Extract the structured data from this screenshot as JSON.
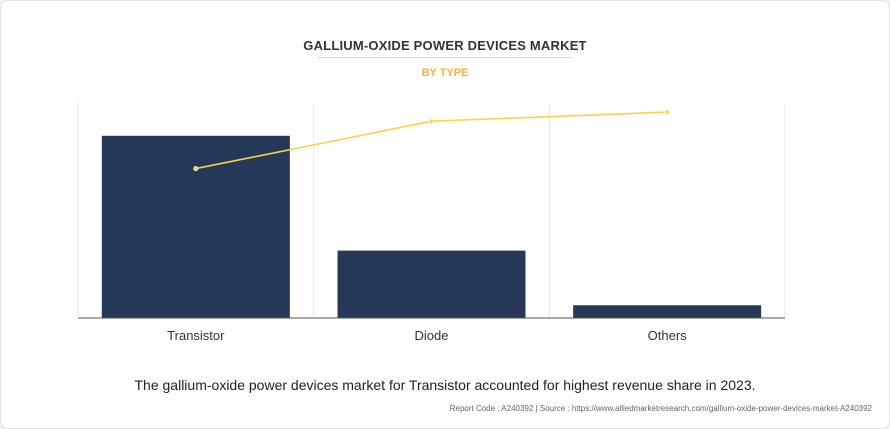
{
  "chart_data": {
    "type": "bar",
    "title": "GALLIUM-OXIDE POWER DEVICES MARKET",
    "subtitle": "BY TYPE",
    "categories": [
      "Transistor",
      "Diode",
      "Others"
    ],
    "values": [
      100,
      37,
      7
    ],
    "line_values": [
      82,
      108,
      113
    ],
    "ylim": [
      0,
      118
    ],
    "grid": "vertical",
    "legend": "none",
    "colors": {
      "bar": "#253858",
      "line": "#f6d44b",
      "axis": "#555555",
      "grid": "#e6e6e6"
    }
  },
  "caption": "The gallium-oxide power devices market for Transistor accounted for highest revenue share in 2023.",
  "source": "Report Code : A240392  |  Source : https://www.alliedmarketresearch.com/gallium-oxide-power-devices-market-A240392"
}
